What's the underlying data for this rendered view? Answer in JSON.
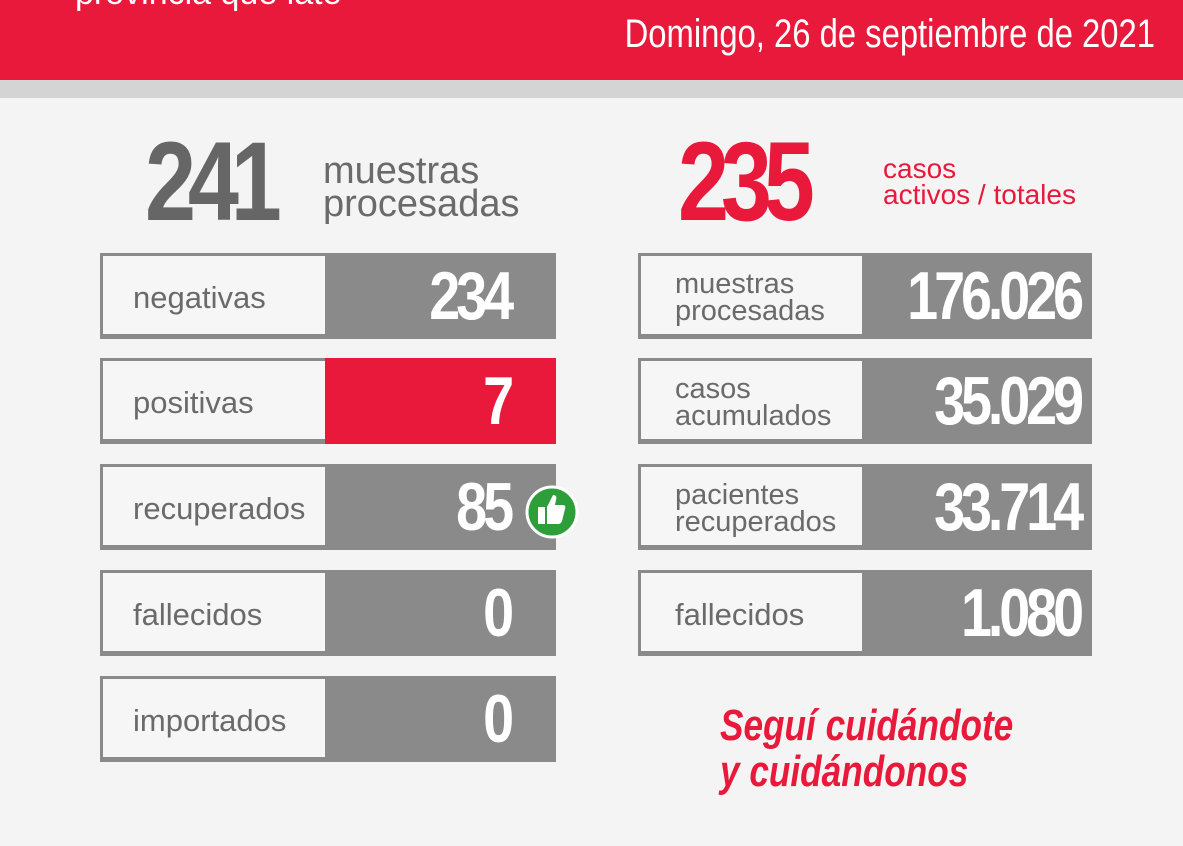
{
  "header": {
    "tagline": "provincia que late",
    "date": "Domingo, 26 de septiembre de 2021"
  },
  "daily": {
    "total": "241",
    "total_label_lines": [
      "muestras",
      "procesadas"
    ],
    "rows": [
      {
        "label_lines": [
          "negativas"
        ],
        "value": "234"
      },
      {
        "label_lines": [
          "positivas"
        ],
        "value": "7"
      },
      {
        "label_lines": [
          "recuperados"
        ],
        "value": "85"
      },
      {
        "label_lines": [
          "fallecidos"
        ],
        "value": "0"
      },
      {
        "label_lines": [
          "importados"
        ],
        "value": "0"
      }
    ]
  },
  "cumulative": {
    "total": "235",
    "total_label_lines": [
      "casos",
      "activos / totales"
    ],
    "rows": [
      {
        "label_lines": [
          "muestras",
          "procesadas"
        ],
        "value": "176.026"
      },
      {
        "label_lines": [
          "casos",
          "acumulados"
        ],
        "value": "35.029"
      },
      {
        "label_lines": [
          "pacientes",
          "recuperados"
        ],
        "value": "33.714"
      },
      {
        "label_lines": [
          "fallecidos"
        ],
        "value": "1.080"
      }
    ]
  },
  "slogan": [
    "Seguí cuidándote",
    "y cuidándonos"
  ]
}
